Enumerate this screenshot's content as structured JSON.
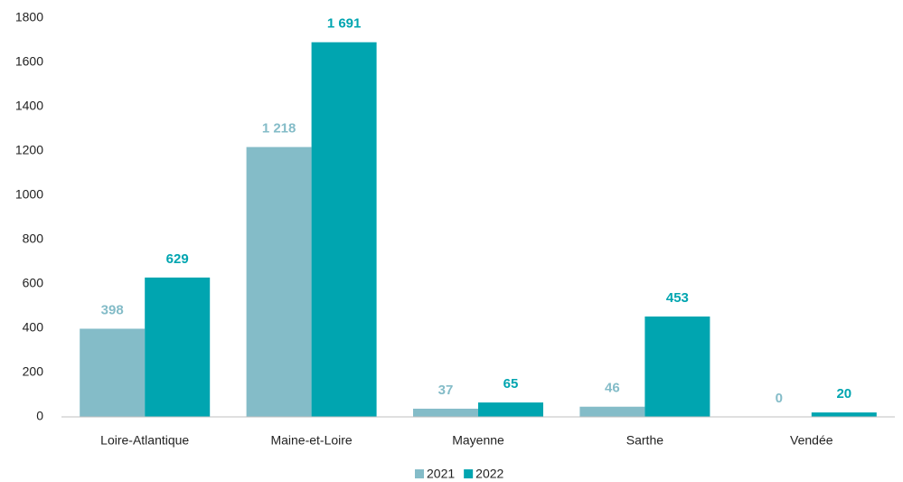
{
  "chart_data": {
    "type": "bar",
    "categories": [
      "Loire-Atlantique",
      "Maine-et-Loire",
      "Mayenne",
      "Sarthe",
      "Vendée"
    ],
    "series": [
      {
        "name": "2021",
        "color": "#84bcc8",
        "values": [
          398,
          1218,
          37,
          46,
          0
        ],
        "value_labels": [
          "398",
          "1 218",
          "37",
          "46",
          "0"
        ]
      },
      {
        "name": "2022",
        "color": "#00a5b0",
        "values": [
          629,
          1691,
          65,
          453,
          20
        ],
        "value_labels": [
          "629",
          "1 691",
          "65",
          "453",
          "20"
        ]
      }
    ],
    "ylim": [
      0,
      1800
    ],
    "yticks": [
      0,
      200,
      400,
      600,
      800,
      1000,
      1200,
      1400,
      1600,
      1800
    ],
    "grid": false,
    "legend": "bottom"
  }
}
